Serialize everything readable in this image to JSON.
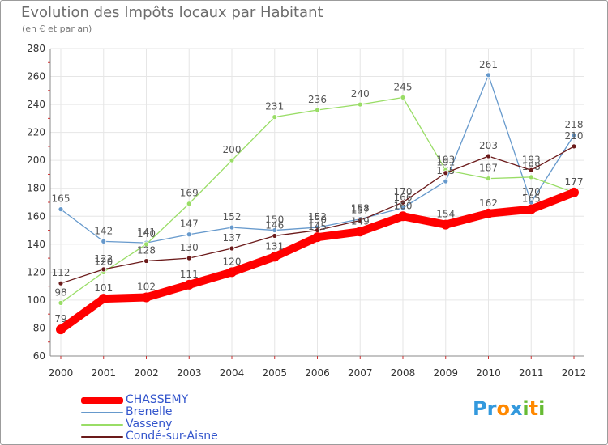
{
  "chart_data": {
    "type": "line",
    "title": "Evolution des Impôts locaux par Habitant",
    "subtitle": "(en € et par an)",
    "categories": [
      "2000",
      "2001",
      "2002",
      "2003",
      "2004",
      "2005",
      "2006",
      "2007",
      "2008",
      "2009",
      "2010",
      "2011",
      "2012"
    ],
    "ylim": [
      60,
      280
    ],
    "yticks": [
      60,
      80,
      100,
      120,
      140,
      160,
      180,
      200,
      220,
      240,
      260,
      280
    ],
    "grid": true,
    "legend_position": "bottom-left",
    "series": [
      {
        "name": "Brenelle",
        "color": "#6699cc",
        "values": [
          165,
          142,
          141,
          147,
          152,
          150,
          152,
          158,
          166,
          185,
          261,
          170,
          218
        ]
      },
      {
        "name": "Vasseny",
        "color": "#99dd66",
        "values": [
          98,
          120,
          140,
          169,
          200,
          231,
          236,
          240,
          245,
          193,
          187,
          188,
          177
        ]
      },
      {
        "name": "Condé-sur-Aisne",
        "color": "#6b1a1a",
        "values": [
          112,
          122,
          128,
          130,
          137,
          146,
          150,
          157,
          170,
          191,
          203,
          193,
          210
        ]
      },
      {
        "name": "CHASSEMY",
        "color": "#ff0000",
        "values": [
          79,
          101,
          102,
          111,
          120,
          131,
          145,
          149,
          160,
          154,
          162,
          165,
          177
        ]
      }
    ]
  },
  "legend": [
    {
      "name": "CHASSEMY",
      "color": "#ff0000"
    },
    {
      "name": "Brenelle",
      "color": "#6699cc"
    },
    {
      "name": "Vasseny",
      "color": "#99dd66"
    },
    {
      "name": "Condé-sur-Aisne",
      "color": "#6b1a1a"
    }
  ],
  "logo": {
    "text": "Proxiti",
    "letters": [
      {
        "ch": "P",
        "color": "#3399dd"
      },
      {
        "ch": "r",
        "color": "#3399dd"
      },
      {
        "ch": "o",
        "color": "#ff8800"
      },
      {
        "ch": "x",
        "color": "#3399dd"
      },
      {
        "ch": "i",
        "color": "#66bb33"
      },
      {
        "ch": "t",
        "color": "#ff8800"
      },
      {
        "ch": "i",
        "color": "#66bb33"
      }
    ]
  }
}
